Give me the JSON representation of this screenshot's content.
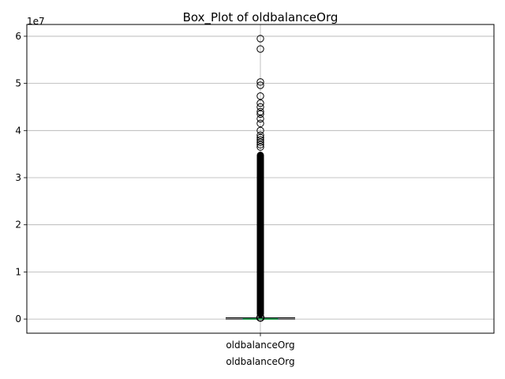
{
  "chart_data": {
    "type": "box",
    "title": "Box_Plot of oldbalanceOrg",
    "xlabel": "oldbalanceOrg",
    "ylabel": "",
    "categories": [
      "oldbalanceOrg"
    ],
    "y_offset_label": "1e7",
    "ylim": [
      -3000000,
      62500000
    ],
    "yticks": [
      0,
      10000000,
      20000000,
      30000000,
      40000000,
      50000000,
      60000000
    ],
    "ytick_labels": [
      "0",
      "1",
      "2",
      "3",
      "4",
      "5",
      "6"
    ],
    "grid": true,
    "box": {
      "min": 0,
      "q1": 0,
      "median": 14208,
      "q3": 107315,
      "max": 268287
    },
    "outlier_dense_range": [
      300000,
      35500000
    ],
    "outliers": [
      36500000,
      37000000,
      37500000,
      38000000,
      38500000,
      39000000,
      40000000,
      41500000,
      42500000,
      43500000,
      44000000,
      45000000,
      45800000,
      47300000,
      49600000,
      50300000,
      57300000,
      59500000
    ],
    "colors": {
      "box": "#1f77b4",
      "median": "#2ca02c",
      "whisker": "#000000",
      "grid": "#b0b0b0"
    }
  }
}
